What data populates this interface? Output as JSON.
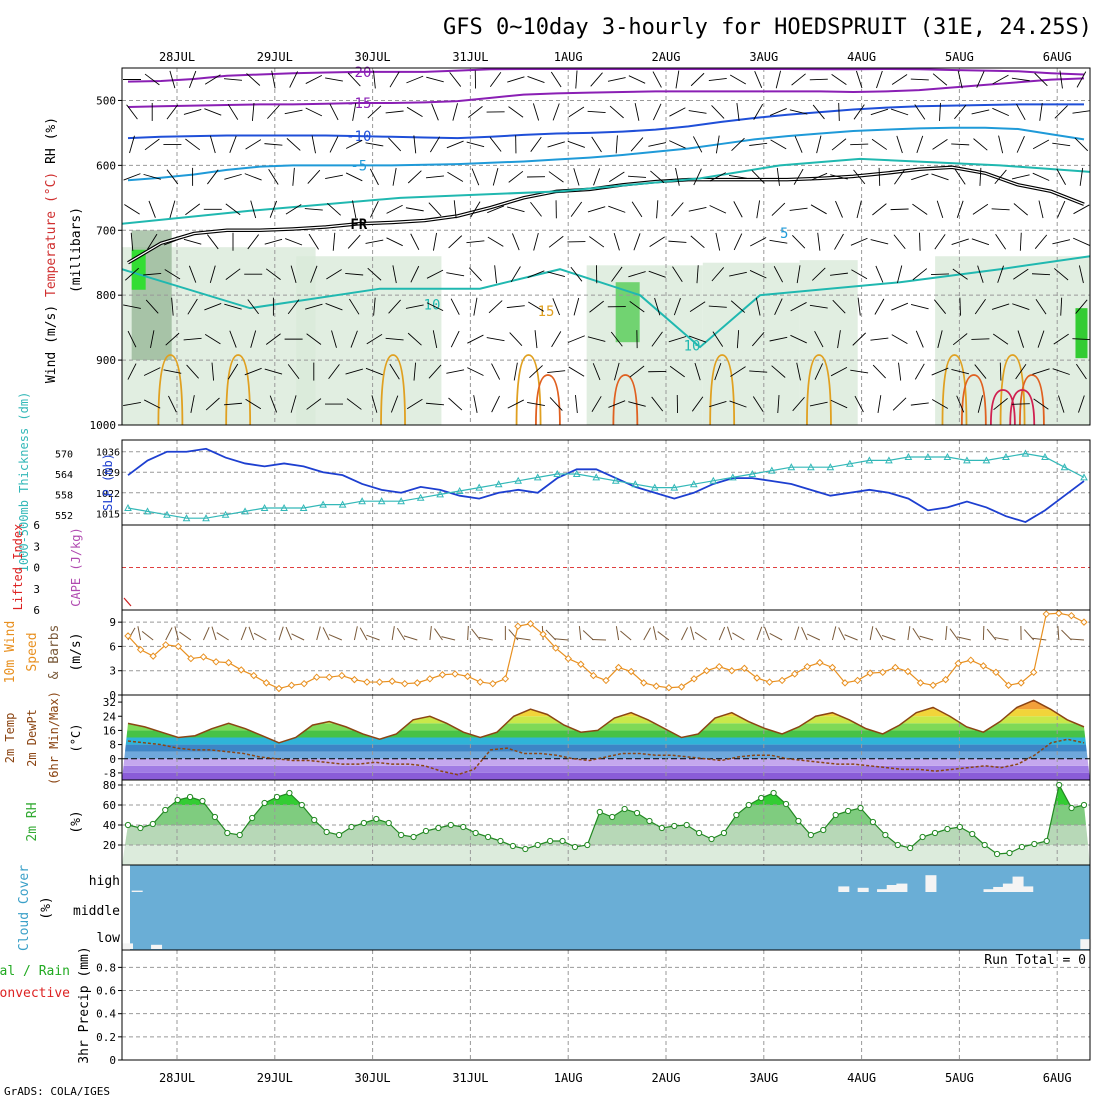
{
  "title": "GFS 0~10day 3-hourly for HOEDSPRUIT (31E, 24.25S)",
  "credit": "GrADS: COLA/IGES",
  "dates": [
    "28JUL",
    "29JUL",
    "30JUL",
    "31JUL",
    "1AUG",
    "2AUG",
    "3AUG",
    "4AUG",
    "5AUG",
    "6AUG"
  ],
  "chart_data": [
    {
      "type": "heatmap",
      "panel": "upper-air",
      "ylabel_parts": [
        {
          "text": "Wind (m/s)",
          "color": "#000000"
        },
        {
          "text": "Temperature (°C)",
          "color": "#d03030"
        },
        {
          "text": "RH (%)",
          "color": "#000000"
        }
      ],
      "ylabel2": "(millibars)",
      "yticks": [
        500,
        600,
        700,
        800,
        900,
        1000
      ],
      "ylim": [
        450,
        1000
      ],
      "temperature_contours": [
        {
          "label": "-20",
          "color": "#8a1fb4",
          "levels": [
            471,
            470,
            467,
            462,
            460,
            458,
            457,
            456,
            456,
            456,
            454,
            452,
            450,
            449,
            449,
            449,
            449,
            449,
            449,
            450,
            451,
            452,
            452,
            451,
            452,
            453,
            454,
            455,
            458,
            460
          ]
        },
        {
          "label": "-15",
          "color": "#8a1fb4",
          "levels": [
            510,
            509,
            508,
            507,
            506,
            506,
            505,
            504,
            504,
            503,
            501,
            496,
            491,
            489,
            488,
            487,
            486,
            486,
            486,
            486,
            486,
            486,
            487,
            486,
            484,
            480,
            476,
            472,
            468,
            466
          ]
        },
        {
          "label": "-10",
          "color": "#1f4fd8",
          "levels": [
            558,
            556,
            555,
            554,
            554,
            554,
            554,
            555,
            556,
            557,
            558,
            556,
            553,
            551,
            550,
            548,
            545,
            540,
            533,
            527,
            522,
            518,
            514,
            511,
            509,
            508,
            507,
            506,
            506,
            506
          ]
        },
        {
          "label": "-5",
          "color": "#1f9ad8",
          "levels": [
            623,
            619,
            614,
            607,
            602,
            600,
            600,
            600,
            600,
            599,
            598,
            596,
            594,
            591,
            588,
            584,
            579,
            574,
            567,
            560,
            555,
            551,
            547,
            545,
            543,
            542,
            542,
            544,
            552,
            560
          ]
        },
        {
          "label": "FR",
          "color": "#000000",
          "levels": [
            750,
            720,
            705,
            700,
            700,
            698,
            695,
            690,
            688,
            685,
            678,
            665,
            650,
            640,
            637,
            630,
            625,
            622,
            622,
            622,
            622,
            620,
            617,
            612,
            606,
            603,
            612,
            630,
            640,
            660
          ]
        }
      ],
      "contour_labels": [
        "-20",
        "-15",
        "-10",
        "-5",
        "FR",
        "5",
        "10",
        "15",
        "10",
        "30",
        "30",
        "50",
        "50",
        "60",
        "30",
        "0",
        "10"
      ]
    },
    {
      "type": "line",
      "panel": "thickness-slp",
      "ylabel_left": "1000-500mb Thickness (dm)",
      "ylabel_right": "SLP (mb)",
      "yticks_left": [
        552,
        558,
        564,
        570
      ],
      "yticks_right": [
        1015,
        1022,
        1029,
        1036
      ],
      "series": [
        {
          "name": "SLP (mb)",
          "color": "#1d3fd0",
          "values": [
            1028,
            1033,
            1036,
            1036,
            1037,
            1034,
            1032,
            1031,
            1032,
            1031,
            1029,
            1028,
            1025,
            1023,
            1022,
            1024,
            1023,
            1021,
            1020,
            1022,
            1023,
            1022,
            1027,
            1030,
            1030,
            1027,
            1024,
            1022,
            1020,
            1022,
            1025,
            1027,
            1027,
            1026,
            1025,
            1023,
            1021,
            1022,
            1023,
            1022,
            1020,
            1016,
            1017,
            1019,
            1017,
            1014,
            1012,
            1016,
            1021,
            1026
          ]
        },
        {
          "name": "1000-500mb Thickness (dm)",
          "color": "#33b8b8",
          "values": [
            554,
            553,
            552,
            551,
            551,
            552,
            553,
            554,
            554,
            554,
            555,
            555,
            556,
            556,
            556,
            557,
            558,
            559,
            560,
            561,
            562,
            563,
            564,
            564,
            563,
            562,
            561,
            560,
            560,
            561,
            562,
            563,
            564,
            565,
            566,
            566,
            566,
            567,
            568,
            568,
            569,
            569,
            569,
            568,
            568,
            569,
            570,
            569,
            566,
            563
          ]
        }
      ]
    },
    {
      "type": "line",
      "panel": "instability",
      "ylabel_left": "Lifted Index",
      "ylabel_right": "CAPE (J/kg)",
      "yticks": [
        -6,
        -3,
        0,
        3,
        6
      ],
      "ylim": [
        -6,
        6
      ],
      "zero_line_color": "#e04040"
    },
    {
      "type": "line",
      "panel": "wind10m",
      "ylabel": "10m Wind Speed & Barbs",
      "unit": "(m/s)",
      "yticks": [
        0,
        3,
        6,
        9
      ],
      "ylim": [
        0,
        10.5
      ],
      "series": [
        {
          "name": "Speed",
          "color": "#e89020",
          "values": [
            7.3,
            5.6,
            4.8,
            6.2,
            6.0,
            4.5,
            4.7,
            4.1,
            4.0,
            3.1,
            2.4,
            1.5,
            0.8,
            1.2,
            1.4,
            2.2,
            2.2,
            2.4,
            1.9,
            1.6,
            1.6,
            1.7,
            1.4,
            1.5,
            2.0,
            2.5,
            2.6,
            2.3,
            1.6,
            1.4,
            2.0,
            8.5,
            8.8,
            7.5,
            5.8,
            4.5,
            3.8,
            2.4,
            1.8,
            3.4,
            2.9,
            1.5,
            1.1,
            0.9,
            1.0,
            2.0,
            3.0,
            3.5,
            3.0,
            3.3,
            2.1,
            1.6,
            1.8,
            2.6,
            3.5,
            4.0,
            3.4,
            1.5,
            1.8,
            2.7,
            2.8,
            3.4,
            2.9,
            1.5,
            1.2,
            1.9,
            3.9,
            4.3,
            3.6,
            2.8,
            1.2,
            1.5,
            2.8,
            10.0,
            10.1,
            9.8,
            9.0
          ]
        }
      ]
    },
    {
      "type": "line",
      "panel": "temp2m",
      "ylabel": "2m Temp / 2m DewPt / (6hr Min/Max)",
      "unit": "(°C)",
      "yticks": [
        -8,
        0,
        8,
        16,
        24,
        32
      ],
      "series": [
        {
          "name": "2m Temp",
          "color": "#8b4513",
          "values": [
            20,
            18,
            15,
            12,
            13,
            17,
            20,
            17,
            13,
            9,
            12,
            19,
            21,
            18,
            14,
            11,
            14,
            22,
            24,
            20,
            15,
            12,
            15,
            24,
            28,
            25,
            19,
            15,
            16,
            23,
            26,
            22,
            17,
            12,
            14,
            23,
            26,
            21,
            17,
            14,
            18,
            24,
            26,
            22,
            17,
            14,
            19,
            26,
            29,
            24,
            18,
            15,
            21,
            29,
            33,
            28,
            22,
            18
          ]
        },
        {
          "name": "2m DewPt",
          "color": "#8b4513",
          "values": [
            10,
            9,
            8,
            6,
            5,
            5,
            4,
            3,
            1,
            0,
            -1,
            -1,
            -2,
            -3,
            -3,
            -2,
            -3,
            -3,
            -4,
            -7,
            -9,
            -6,
            5,
            6,
            3,
            3,
            2,
            0,
            -1,
            1,
            3,
            3,
            2,
            2,
            1,
            0,
            -1,
            1,
            2,
            2,
            0,
            -1,
            -2,
            -3,
            -3,
            -4,
            -5,
            -6,
            -6,
            -7,
            -6,
            -5,
            -4,
            -5,
            -3,
            2,
            9,
            11,
            9
          ]
        }
      ]
    },
    {
      "type": "area",
      "panel": "rh2m",
      "ylabel": "2m RH",
      "unit": "(%)",
      "yticks": [
        20,
        40,
        60,
        80
      ],
      "series": [
        {
          "name": "2m RH",
          "color": "#33aa33",
          "values": [
            40,
            37,
            41,
            55,
            65,
            68,
            64,
            48,
            32,
            30,
            47,
            62,
            68,
            72,
            60,
            45,
            33,
            30,
            38,
            42,
            46,
            42,
            30,
            28,
            34,
            37,
            40,
            38,
            32,
            28,
            24,
            19,
            16,
            20,
            24,
            24,
            18,
            20,
            53,
            48,
            56,
            52,
            44,
            37,
            39,
            40,
            32,
            26,
            32,
            50,
            60,
            67,
            72,
            61,
            44,
            30,
            35,
            50,
            54,
            57,
            43,
            30,
            20,
            17,
            28,
            32,
            36,
            38,
            31,
            20,
            11,
            12,
            18,
            21,
            24,
            80,
            57,
            60
          ]
        }
      ]
    },
    {
      "type": "bar",
      "panel": "cloud",
      "ylabel": "Cloud Cover",
      "unit": "(%)",
      "levels": [
        "high",
        "middle",
        "low"
      ],
      "background": "#6aaed6",
      "series": [
        {
          "name": "high",
          "bars": [
            {
              "x": 0.01,
              "value": 5
            },
            {
              "x": 0.74,
              "value": 20
            },
            {
              "x": 0.76,
              "value": 15
            },
            {
              "x": 0.78,
              "value": 10
            },
            {
              "x": 0.79,
              "value": 25
            },
            {
              "x": 0.8,
              "value": 30
            },
            {
              "x": 0.83,
              "value": 60
            },
            {
              "x": 0.89,
              "value": 10
            },
            {
              "x": 0.9,
              "value": 18
            },
            {
              "x": 0.91,
              "value": 30
            },
            {
              "x": 0.92,
              "value": 55
            },
            {
              "x": 0.93,
              "value": 20
            }
          ]
        },
        {
          "name": "low",
          "bars": [
            {
              "x": 0.0,
              "value": 20
            },
            {
              "x": 0.03,
              "value": 15
            },
            {
              "x": 0.99,
              "value": 35
            }
          ]
        }
      ]
    },
    {
      "type": "bar",
      "panel": "precip",
      "ylabel_parts": [
        {
          "text": "3hr Precip (mm)",
          "color": "#000000"
        },
        {
          "text": "Total / Rain",
          "color": "#22aa22"
        },
        {
          "text": "Convective",
          "color": "#dd2222"
        }
      ],
      "yticks": [
        0,
        0.2,
        0.4,
        0.6,
        0.8
      ],
      "ylim": [
        0,
        0.95
      ],
      "run_total_label": "Run Total = 0",
      "values": []
    }
  ]
}
